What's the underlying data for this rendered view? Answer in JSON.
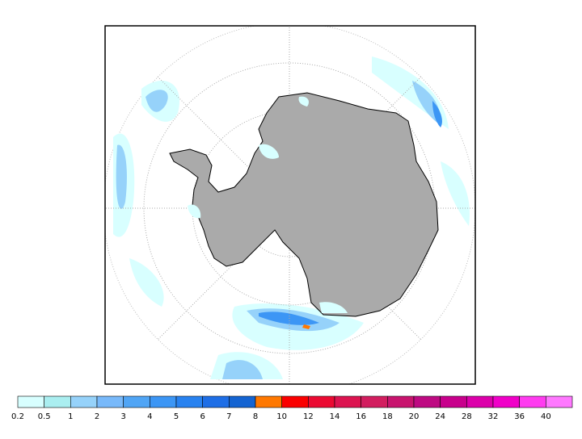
{
  "colorbar": {
    "labels": [
      0.2,
      0.5,
      1,
      2,
      3,
      4,
      5,
      6,
      7,
      8,
      10,
      12,
      14,
      16,
      18,
      20,
      24,
      28,
      32,
      36,
      40
    ],
    "colors": [
      "#d8ffff",
      "#aaeef0",
      "#96d2fa",
      "#78b9fa",
      "#50a5f5",
      "#3c96f5",
      "#2882f0",
      "#1e6ee6",
      "#1464d2",
      "#ff7800",
      "#fa0000",
      "#eb0a32",
      "#dc1450",
      "#d21e5f",
      "#c8146e",
      "#be0a82",
      "#c8008c",
      "#dc00aa",
      "#f000c8",
      "#ff3cf0",
      "#ff78ff"
    ]
  }
}
